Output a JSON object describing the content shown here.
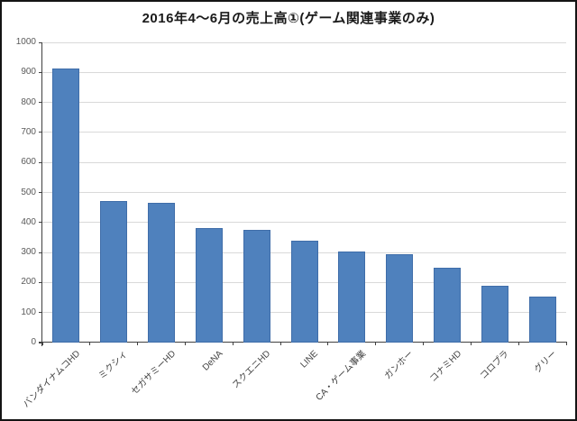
{
  "chart_data": {
    "type": "bar",
    "title": "2016年4～6月の売上高①(ゲーム関連事業のみ)",
    "categories": [
      "バンダイナムコHD",
      "ミクシィ",
      "セガサミーHD",
      "DeNA",
      "スクエニHD",
      "LINE",
      "CA・ゲーム事業",
      "ガンホー",
      "コナミHD",
      "コロプラ",
      "グリー"
    ],
    "values": [
      913,
      470,
      466,
      381,
      374,
      339,
      304,
      293,
      250,
      188,
      154
    ],
    "xlabel": "",
    "ylabel": "",
    "ylim": [
      0,
      1000
    ],
    "y_ticks": [
      0,
      100,
      200,
      300,
      400,
      500,
      600,
      700,
      800,
      900,
      1000
    ],
    "grid": true,
    "legend": false,
    "x_label_rotation_deg": 45,
    "colors": {
      "bar_fill": "#4f81bd",
      "bar_border": "#3f6da9",
      "gridline": "#d9d9d9",
      "axis": "#404040",
      "tick_label": "#595959",
      "title_text": "#1a1a1a",
      "background": "#ffffff",
      "outer_border": "#141414"
    }
  }
}
